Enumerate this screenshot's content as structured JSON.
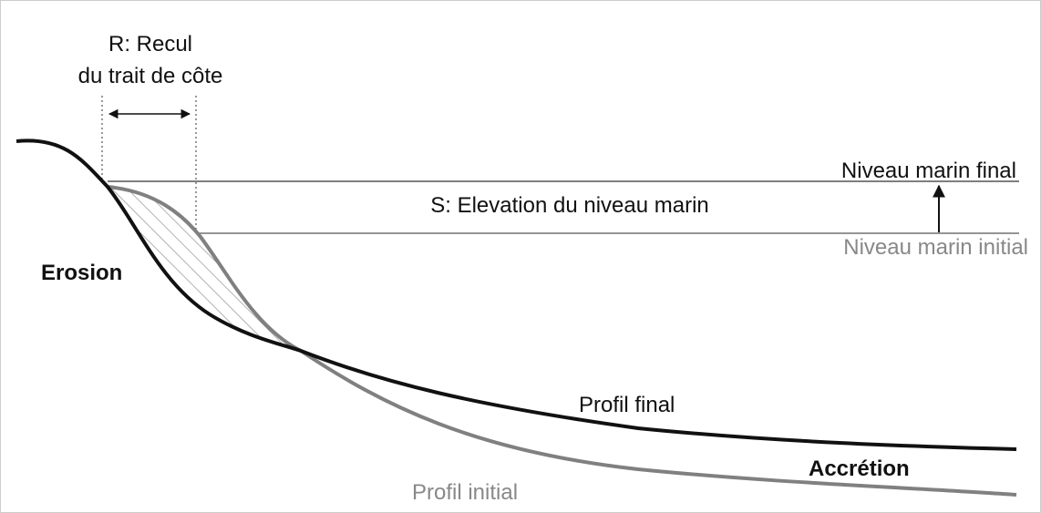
{
  "labels": {
    "recul_line1": "R: Recul",
    "recul_line2": "du trait de côte",
    "niveau_final": "Niveau marin final",
    "elevation": "S: Elevation du niveau marin",
    "niveau_initial": "Niveau marin initial",
    "erosion": "Erosion",
    "profil_final": "Profil final",
    "accretion": "Accrétion",
    "profil_initial": "Profil initial"
  }
}
